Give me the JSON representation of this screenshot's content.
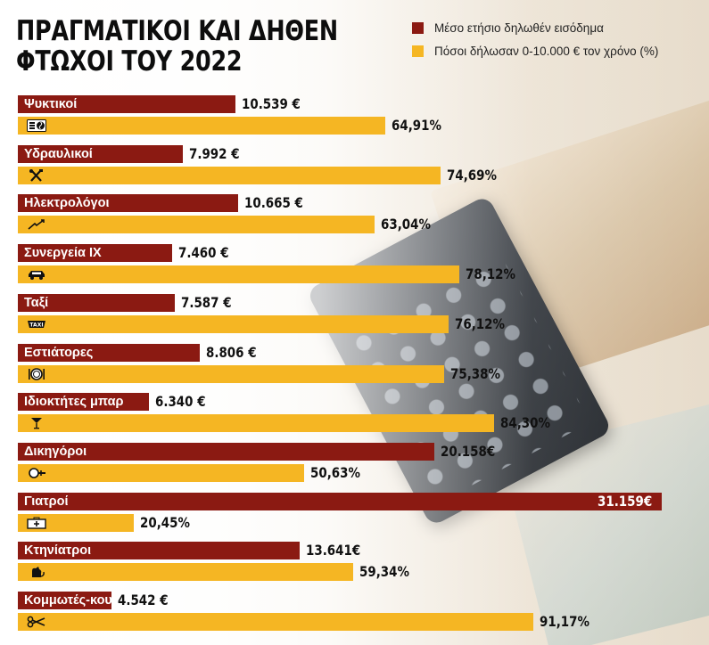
{
  "title_lines": [
    "ΠΡΑΓΜΑΤΙΚΟΙ ΚΑΙ ΔΗΘΕΝ",
    "ΦΤΩΧΟΙ ΤΟΥ 2022"
  ],
  "legend": [
    {
      "label": "Μέσο ετήσιο δηλωθέν εισόδημα",
      "color": "#8b1a12"
    },
    {
      "label": "Πόσοι δήλωσαν 0-10.000 € τον χρόνο (%)",
      "color": "#f5b623"
    }
  ],
  "chart_data": {
    "type": "bar",
    "orientation": "horizontal",
    "categories": [
      "Ψυκτικοί",
      "Υδραυλικοί",
      "Ηλεκτρολόγοι",
      "Συνεργεία ΙΧ",
      "Ταξί",
      "Εστιάτορες",
      "Ιδιοκτήτες μπαρ",
      "Δικηγόροι",
      "Γιατροί",
      "Κτηνίατροι",
      "Κομμωτές-κουρεία"
    ],
    "icons": [
      "fan-icon",
      "tools-icon",
      "electric-icon",
      "car-icon",
      "taxi-icon",
      "plate-cutlery-icon",
      "cocktail-icon",
      "gavel-icon",
      "medical-case-icon",
      "pet-icon",
      "scissors-icon"
    ],
    "series": [
      {
        "name": "Μέσο ετήσιο δηλωθέν εισόδημα",
        "color": "#8b1a12",
        "values": [
          10539,
          7992,
          10665,
          7460,
          7587,
          8806,
          6340,
          20158,
          31159,
          13641,
          4542
        ],
        "labels": [
          "10.539 €",
          "7.992 €",
          "10.665 €",
          "7.460 €",
          "7.587 €",
          "8.806 €",
          "6.340 €",
          "20.158€",
          "31.159€",
          "13.641€",
          "4.542 €"
        ]
      },
      {
        "name": "Πόσοι δήλωσαν 0-10.000 € τον χρόνο (%)",
        "color": "#f5b623",
        "values": [
          64.91,
          74.69,
          63.04,
          78.12,
          76.12,
          75.38,
          84.3,
          50.63,
          20.45,
          59.34,
          91.17
        ],
        "labels": [
          "64,91%",
          "74,69%",
          "63,04%",
          "78,12%",
          "76,12%",
          "75,38%",
          "84,30%",
          "50,63%",
          "20,45%",
          "59,34%",
          "91,17%"
        ]
      }
    ]
  }
}
